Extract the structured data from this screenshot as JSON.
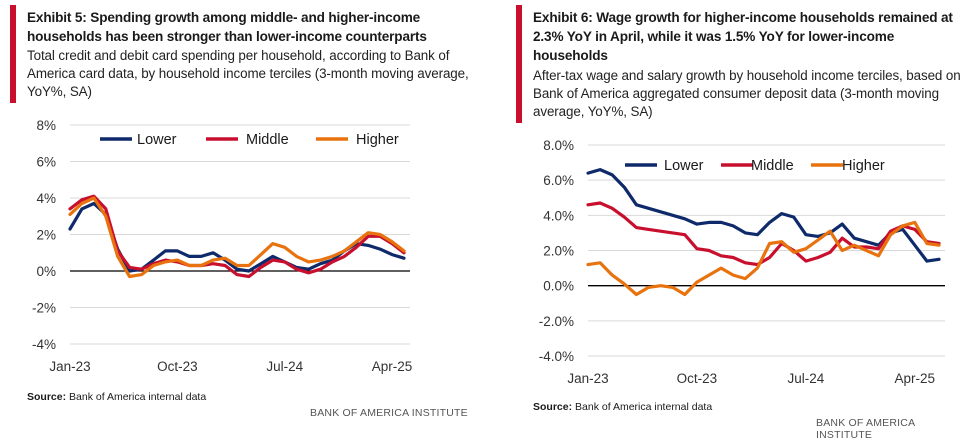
{
  "chart_data": [
    {
      "type": "line",
      "title": "Exhibit 5: Spending growth among middle- and higher-income households has been stronger than lower-income counterparts",
      "subtitle": "Total credit and debit card spending per household, according to Bank of America card data, by household income terciles (3-month moving average, YoY%, SA)",
      "ylim": [
        -4,
        8
      ],
      "yticks": [
        8,
        6,
        4,
        2,
        0,
        -2,
        -4
      ],
      "ytick_labels": [
        "8%",
        "6%",
        "4%",
        "2%",
        "0%",
        "-2%",
        "-4%"
      ],
      "xtick_labels": [
        "Jan-23",
        "Oct-23",
        "Jul-24",
        "Apr-25"
      ],
      "xtick_index": [
        0,
        9,
        18,
        27
      ],
      "legend": [
        "Lower",
        "Middle",
        "Higher"
      ],
      "series": [
        {
          "name": "Lower",
          "color": "#0e2a6b",
          "values": [
            2.3,
            3.4,
            3.7,
            3.1,
            1.2,
            0.0,
            0.1,
            0.6,
            1.1,
            1.1,
            0.8,
            0.8,
            1.0,
            0.6,
            0.1,
            0.0,
            0.4,
            0.8,
            0.5,
            0.2,
            0.1,
            0.4,
            0.6,
            1.1,
            1.5,
            1.4,
            1.2,
            0.9,
            0.7
          ]
        },
        {
          "name": "Middle",
          "color": "#c8102e",
          "values": [
            3.4,
            3.9,
            4.1,
            3.4,
            1.1,
            0.2,
            0.1,
            0.4,
            0.6,
            0.5,
            0.3,
            0.3,
            0.4,
            0.3,
            -0.2,
            -0.3,
            0.2,
            0.6,
            0.5,
            0.1,
            -0.1,
            0.1,
            0.5,
            0.8,
            1.3,
            1.9,
            1.9,
            1.5,
            1.0
          ]
        },
        {
          "name": "Higher",
          "color": "#e8730e",
          "values": [
            3.1,
            3.7,
            4.0,
            3.0,
            0.8,
            -0.3,
            -0.2,
            0.3,
            0.5,
            0.6,
            0.3,
            0.3,
            0.6,
            0.7,
            0.3,
            0.3,
            0.9,
            1.5,
            1.3,
            0.8,
            0.5,
            0.6,
            0.8,
            1.1,
            1.6,
            2.1,
            2.0,
            1.6,
            1.1
          ]
        }
      ],
      "source_label": "Source:",
      "source_text": "Bank of America internal data",
      "brand": "BANK OF AMERICA INSTITUTE"
    },
    {
      "type": "line",
      "title": "Exhibit 6: Wage growth for higher-income households remained at 2.3% YoY in April, while it was 1.5% YoY for lower-income households",
      "subtitle": "After-tax wage and salary growth by household income terciles, based on Bank of America aggregated consumer deposit data (3-month moving average, YoY%, SA)",
      "ylim": [
        -4,
        8
      ],
      "yticks": [
        8,
        6,
        4,
        2,
        0,
        -2,
        -4
      ],
      "ytick_labels": [
        "8.0%",
        "6.0%",
        "4.0%",
        "2.0%",
        "0.0%",
        "-2.0%",
        "-4.0%"
      ],
      "xtick_labels": [
        "Jan-23",
        "Oct-23",
        "Jul-24",
        "Apr-25"
      ],
      "xtick_index": [
        0,
        9,
        18,
        27
      ],
      "legend": [
        "Lower",
        "Middle",
        "Higher"
      ],
      "series": [
        {
          "name": "Lower",
          "color": "#0e2a6b",
          "values": [
            6.4,
            6.6,
            6.3,
            5.6,
            4.6,
            4.4,
            4.2,
            4.0,
            3.8,
            3.5,
            3.6,
            3.6,
            3.4,
            3.0,
            2.9,
            3.6,
            4.1,
            3.9,
            2.9,
            2.8,
            3.0,
            3.5,
            2.7,
            2.5,
            2.3,
            3.0,
            3.2,
            2.3,
            1.4,
            1.5
          ]
        },
        {
          "name": "Middle",
          "color": "#c8102e",
          "values": [
            4.6,
            4.7,
            4.4,
            3.9,
            3.3,
            3.2,
            3.1,
            3.0,
            2.9,
            2.1,
            2.0,
            1.7,
            1.6,
            1.3,
            1.2,
            1.6,
            2.4,
            2.0,
            1.4,
            1.6,
            1.9,
            2.7,
            2.2,
            2.2,
            2.1,
            3.1,
            3.4,
            3.2,
            2.5,
            2.4
          ]
        },
        {
          "name": "Higher",
          "color": "#e8730e",
          "values": [
            1.2,
            1.3,
            0.6,
            0.1,
            -0.5,
            -0.1,
            0.0,
            -0.1,
            -0.5,
            0.2,
            0.6,
            1.0,
            0.6,
            0.4,
            1.0,
            2.4,
            2.5,
            1.9,
            2.1,
            2.6,
            3.1,
            2.0,
            2.3,
            2.0,
            1.7,
            2.9,
            3.4,
            3.6,
            2.4,
            2.3
          ]
        }
      ],
      "source_label": "Source:",
      "source_text": "Bank of America internal data",
      "brand": "BANK OF AMERICA INSTITUTE"
    }
  ]
}
